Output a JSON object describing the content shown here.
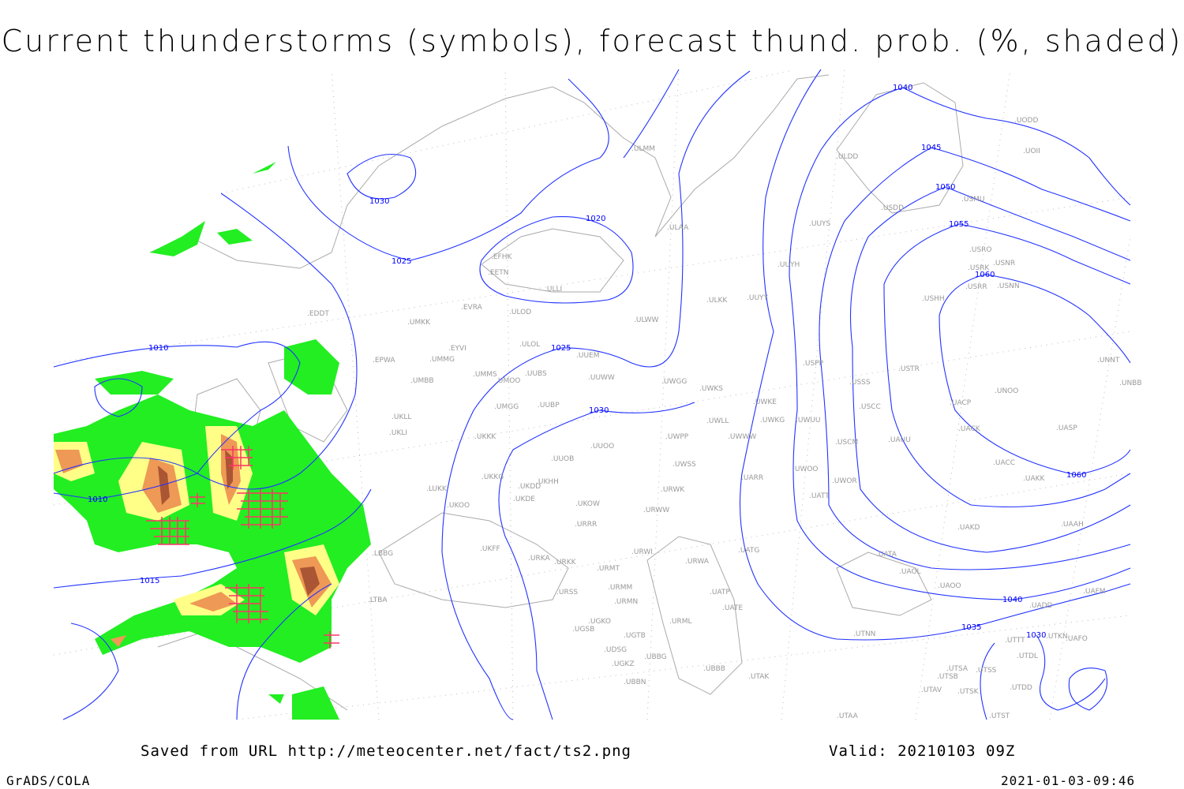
{
  "title": "Current thunderstorms (symbols), forecast thund. prob. (%, shaded)",
  "footer": {
    "saved_from": "Saved from URL http://meteocenter.net/fact/ts2.png",
    "valid": "Valid: 20210103 09Z",
    "software": "GrADS/COLA",
    "timestamp": "2021-01-03-09:46"
  },
  "colors": {
    "isobar": "#2233ff",
    "coastline": "#aaaaaa",
    "prob_low": "#22ee22",
    "prob_mid": "#ffff88",
    "prob_high": "#ee9955",
    "prob_very_high": "#aa5533",
    "thunderstorm_symbol": "#ff3366"
  },
  "isobar_labels": [
    "1030",
    "1025",
    "1020",
    "1025",
    "1030",
    "1010",
    "1010",
    "1015",
    "1040",
    "1045",
    "1050",
    "1055",
    "1060",
    "1060",
    "1040",
    "1035",
    "1030"
  ],
  "stations": [
    "ULMM",
    "ULDD",
    "UODD",
    "UOII",
    "USDD",
    "USMU",
    "ULAA",
    "UUYS",
    "USRO",
    "USRK",
    "USNR",
    "USRR",
    "USNN",
    "USHH",
    "UUYH",
    "EFHK",
    "EETN",
    "ULLI",
    "ULKK",
    "UUYY",
    "EVRA",
    "ULOD",
    "ULWW",
    "EDDT",
    "UMKK",
    "EYVI",
    "ULOL",
    "UUEM",
    "EPWA",
    "UMMG",
    "UMMS",
    "UUBS",
    "UMOO",
    "UUWW",
    "UWGG",
    "UWKS",
    "UMBB",
    "USPP",
    "USSS",
    "USTR",
    "UNNT",
    "UNBB",
    "UNOO",
    "UACP",
    "UWKE",
    "USCC",
    "UMGG",
    "UUBP",
    "UKLL",
    "UKLI",
    "UWLL",
    "UWKG",
    "UWUU",
    "UACK",
    "UASP",
    "UKKK",
    "UWPP",
    "UWWW",
    "USCM",
    "UAUU",
    "UUOO",
    "UUOB",
    "UWSS",
    "UACC",
    "UKHH",
    "UKKG",
    "UKDD",
    "UWOO",
    "UWOR",
    "UARR",
    "UAKK",
    "UKDE",
    "URWK",
    "UKOW",
    "UKOO",
    "LUKK",
    "UATT",
    "URWW",
    "URRR",
    "UAKD",
    "UAAH",
    "UKFF",
    "URWI",
    "UATG",
    "UATA",
    "URKA",
    "URKK",
    "URMT",
    "URWA",
    "UAOL",
    "UAOO",
    "UAFM",
    "URSS",
    "URMM",
    "UATP",
    "URMN",
    "UADD",
    "UATE",
    "UGKO",
    "URML",
    "UGSB",
    "UGTB",
    "UTNN",
    "UTTT",
    "UTKN",
    "UAFO",
    "UDSG",
    "UTDL",
    "UBBG",
    "UGKZ",
    "UTSA",
    "UTSS",
    "UBBB",
    "UTAK",
    "UTSB",
    "UBBN",
    "UTDD",
    "UTAV",
    "UTSK",
    "UTST",
    "UTAA",
    "LBBG",
    "LTBA"
  ]
}
